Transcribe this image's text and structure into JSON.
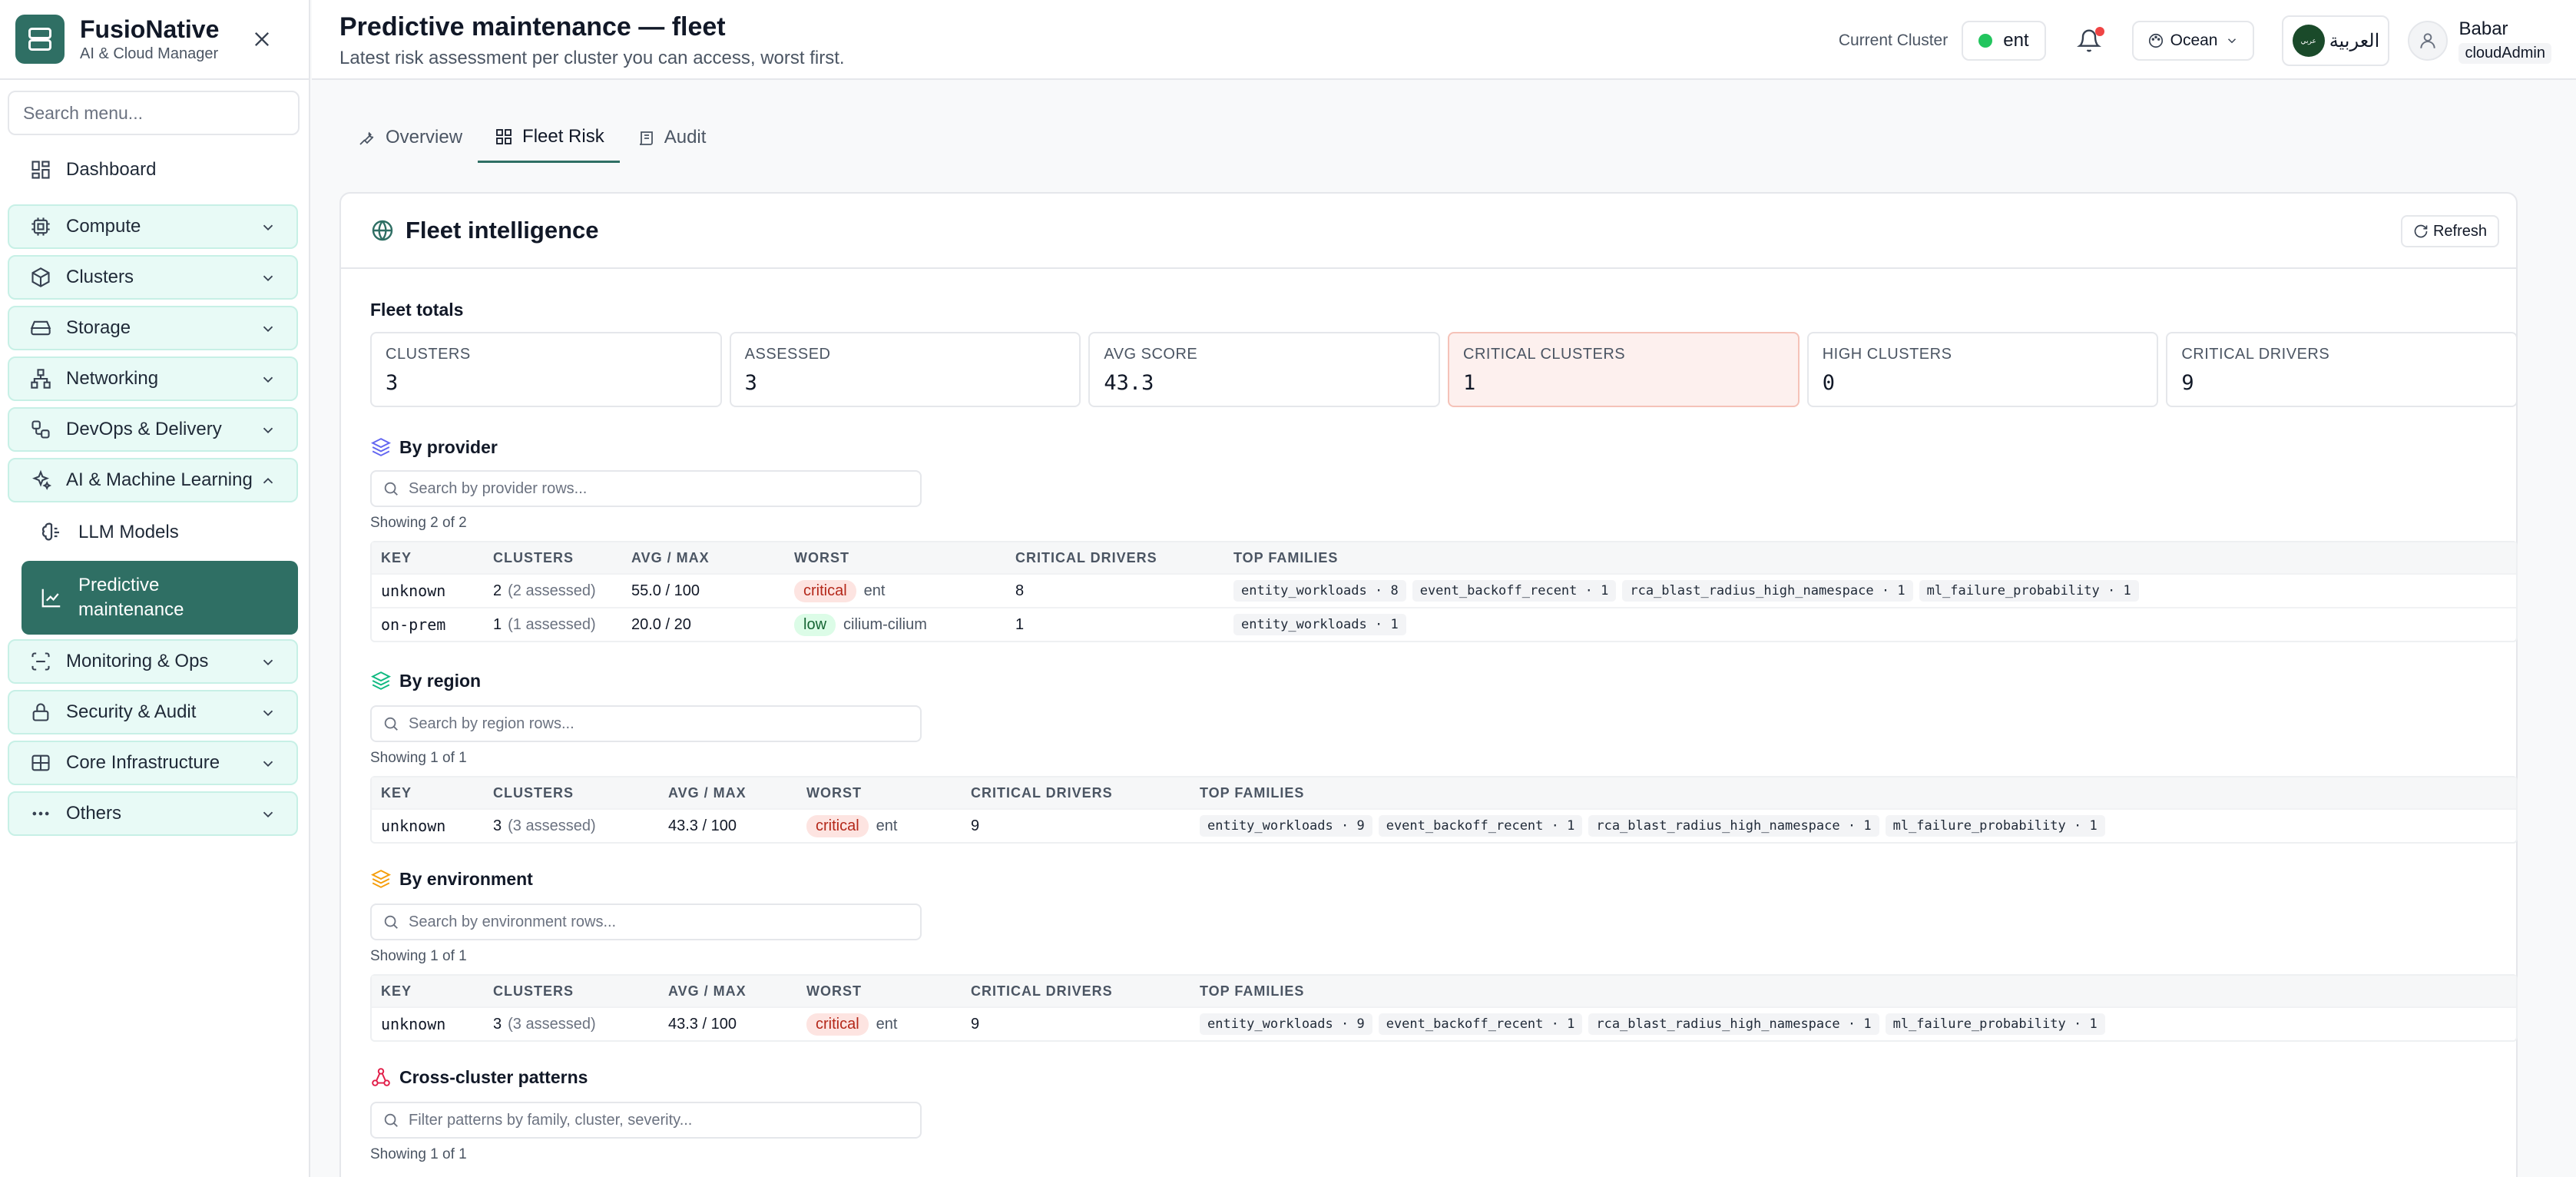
{
  "brand": {
    "name": "FusioNative",
    "subtitle": "AI & Cloud Manager"
  },
  "sidebar": {
    "search_placeholder": "Search menu...",
    "dashboard": "Dashboard",
    "items": [
      {
        "label": "Compute",
        "icon": "cpu-icon"
      },
      {
        "label": "Clusters",
        "icon": "cube-icon"
      },
      {
        "label": "Storage",
        "icon": "hard-drive-icon"
      },
      {
        "label": "Networking",
        "icon": "network-icon"
      },
      {
        "label": "DevOps & Delivery",
        "icon": "workflow-icon"
      },
      {
        "label": "AI & Machine Learning",
        "icon": "sparkles-icon"
      }
    ],
    "sub_items": [
      {
        "label": "LLM Models",
        "icon": "brain-icon"
      },
      {
        "label": "Predictive maintenance",
        "line1": "Predictive",
        "line2": "maintenance",
        "icon": "chart-line-icon"
      }
    ],
    "items_after": [
      {
        "label": "Monitoring & Ops",
        "icon": "scan-icon"
      },
      {
        "label": "Security & Audit",
        "icon": "lock-icon"
      },
      {
        "label": "Core Infrastructure",
        "icon": "server-icon"
      },
      {
        "label": "Others",
        "icon": "more-horizontal-icon"
      }
    ]
  },
  "header": {
    "title": "Predictive maintenance — fleet",
    "subtitle": "Latest risk assessment per cluster you can access, worst first.",
    "current_cluster_label": "Current Cluster",
    "current_cluster": "ent",
    "theme": "Ocean",
    "lang": "العربية",
    "lang_badge": "عربي",
    "user_name": "Babar",
    "user_role": "cloudAdmin"
  },
  "tabs": [
    {
      "label": "Overview",
      "icon": "wrench-icon"
    },
    {
      "label": "Fleet Risk",
      "icon": "grid-icon"
    },
    {
      "label": "Audit",
      "icon": "scroll-icon"
    }
  ],
  "card": {
    "title": "Fleet intelligence",
    "refresh": "Refresh",
    "totals_label": "Fleet totals",
    "stats": [
      {
        "label": "CLUSTERS",
        "value": "3"
      },
      {
        "label": "ASSESSED",
        "value": "3"
      },
      {
        "label": "AVG SCORE",
        "value": "43.3"
      },
      {
        "label": "CRITICAL CLUSTERS",
        "value": "1"
      },
      {
        "label": "HIGH CLUSTERS",
        "value": "0"
      },
      {
        "label": "CRITICAL DRIVERS",
        "value": "9"
      }
    ]
  },
  "provider": {
    "title": "By provider",
    "search_placeholder": "Search by provider rows...",
    "showing": "Showing 2 of 2",
    "headers": [
      "KEY",
      "CLUSTERS",
      "AVG / MAX",
      "WORST",
      "CRITICAL DRIVERS",
      "TOP FAMILIES"
    ],
    "rows": [
      {
        "key": "unknown",
        "clusters": "2",
        "assessed": "(2 assessed)",
        "avgmax": "55.0 / 100",
        "worst_sev": "critical",
        "worst_name": "ent",
        "drivers": "8",
        "families": [
          "entity_workloads · 8",
          "event_backoff_recent · 1",
          "rca_blast_radius_high_namespace · 1",
          "ml_failure_probability · 1"
        ]
      },
      {
        "key": "on-prem",
        "clusters": "1",
        "assessed": "(1 assessed)",
        "avgmax": "20.0 / 20",
        "worst_sev": "low",
        "worst_name": "cilium-cilium",
        "drivers": "1",
        "families": [
          "entity_workloads · 1"
        ]
      }
    ]
  },
  "region": {
    "title": "By region",
    "search_placeholder": "Search by region rows...",
    "showing": "Showing 1 of 1",
    "headers": [
      "KEY",
      "CLUSTERS",
      "AVG / MAX",
      "WORST",
      "CRITICAL DRIVERS",
      "TOP FAMILIES"
    ],
    "rows": [
      {
        "key": "unknown",
        "clusters": "3",
        "assessed": "(3 assessed)",
        "avgmax": "43.3 / 100",
        "worst_sev": "critical",
        "worst_name": "ent",
        "drivers": "9",
        "families": [
          "entity_workloads · 9",
          "event_backoff_recent · 1",
          "rca_blast_radius_high_namespace · 1",
          "ml_failure_probability · 1"
        ]
      }
    ]
  },
  "environment": {
    "title": "By environment",
    "search_placeholder": "Search by environment rows...",
    "showing": "Showing 1 of 1",
    "headers": [
      "KEY",
      "CLUSTERS",
      "AVG / MAX",
      "WORST",
      "CRITICAL DRIVERS",
      "TOP FAMILIES"
    ],
    "rows": [
      {
        "key": "unknown",
        "clusters": "3",
        "assessed": "(3 assessed)",
        "avgmax": "43.3 / 100",
        "worst_sev": "critical",
        "worst_name": "ent",
        "drivers": "9",
        "families": [
          "entity_workloads · 9",
          "event_backoff_recent · 1",
          "rca_blast_radius_high_namespace · 1",
          "ml_failure_probability · 1"
        ]
      }
    ]
  },
  "patterns": {
    "title": "Cross-cluster patterns",
    "search_placeholder": "Filter patterns by family, cluster, severity...",
    "showing": "Showing 1 of 1"
  },
  "colors": {
    "accent": "#2f6f64",
    "critical": "#b4281a",
    "low": "#166534"
  }
}
